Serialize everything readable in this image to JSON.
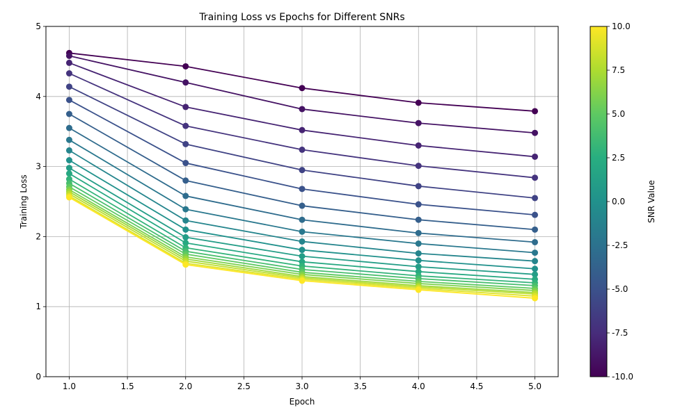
{
  "chart_data": {
    "type": "line",
    "title": "Training Loss vs Epochs for Different SNRs",
    "xlabel": "Epoch",
    "ylabel": "Training Loss",
    "x": [
      1,
      2,
      3,
      4,
      5
    ],
    "xlim": [
      0.8,
      5.2
    ],
    "ylim": [
      0,
      5
    ],
    "x_ticks": [
      "1.0",
      "1.5",
      "2.0",
      "2.5",
      "3.0",
      "3.5",
      "4.0",
      "4.5",
      "5.0"
    ],
    "y_ticks": [
      "0",
      "1",
      "2",
      "3",
      "4",
      "5"
    ],
    "grid": true,
    "marker": "circle",
    "colormap": "viridis",
    "colorbar": {
      "label": "SNR Value",
      "range": [
        -10,
        10
      ],
      "ticks": [
        "-10.0",
        "-7.5",
        "-5.0",
        "-2.5",
        "0.0",
        "2.5",
        "5.0",
        "7.5",
        "10.0"
      ]
    },
    "series": [
      {
        "snr": -10,
        "values": [
          4.62,
          4.43,
          4.12,
          3.91,
          3.79
        ]
      },
      {
        "snr": -9,
        "values": [
          4.58,
          4.2,
          3.82,
          3.62,
          3.48
        ]
      },
      {
        "snr": -8,
        "values": [
          4.48,
          3.85,
          3.52,
          3.3,
          3.14
        ]
      },
      {
        "snr": -7,
        "values": [
          4.33,
          3.58,
          3.24,
          3.01,
          2.84
        ]
      },
      {
        "snr": -6,
        "values": [
          4.14,
          3.32,
          2.95,
          2.72,
          2.55
        ]
      },
      {
        "snr": -5,
        "values": [
          3.95,
          3.05,
          2.68,
          2.46,
          2.31
        ]
      },
      {
        "snr": -4,
        "values": [
          3.75,
          2.8,
          2.44,
          2.24,
          2.1
        ]
      },
      {
        "snr": -3,
        "values": [
          3.55,
          2.58,
          2.24,
          2.05,
          1.92
        ]
      },
      {
        "snr": -2,
        "values": [
          3.38,
          2.39,
          2.07,
          1.9,
          1.77
        ]
      },
      {
        "snr": -1,
        "values": [
          3.23,
          2.23,
          1.93,
          1.76,
          1.65
        ]
      },
      {
        "snr": 0,
        "values": [
          3.09,
          2.1,
          1.81,
          1.66,
          1.54
        ]
      },
      {
        "snr": 1,
        "values": [
          2.98,
          1.99,
          1.72,
          1.57,
          1.46
        ]
      },
      {
        "snr": 2,
        "values": [
          2.9,
          1.91,
          1.64,
          1.5,
          1.39
        ]
      },
      {
        "snr": 3,
        "values": [
          2.82,
          1.84,
          1.58,
          1.44,
          1.34
        ]
      },
      {
        "snr": 4,
        "values": [
          2.76,
          1.79,
          1.53,
          1.4,
          1.3
        ]
      },
      {
        "snr": 5,
        "values": [
          2.71,
          1.75,
          1.49,
          1.36,
          1.26
        ]
      },
      {
        "snr": 6,
        "values": [
          2.67,
          1.71,
          1.46,
          1.33,
          1.23
        ]
      },
      {
        "snr": 7,
        "values": [
          2.64,
          1.68,
          1.43,
          1.3,
          1.2
        ]
      },
      {
        "snr": 8,
        "values": [
          2.61,
          1.65,
          1.41,
          1.28,
          1.18
        ]
      },
      {
        "snr": 9,
        "values": [
          2.58,
          1.62,
          1.39,
          1.26,
          1.15
        ]
      },
      {
        "snr": 10,
        "values": [
          2.56,
          1.6,
          1.37,
          1.24,
          1.12
        ]
      }
    ]
  }
}
